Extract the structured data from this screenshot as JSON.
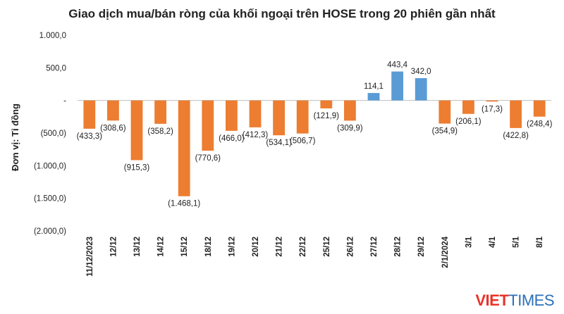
{
  "chart_data": {
    "type": "bar",
    "title": "Giao dịch mua/bán ròng của khối ngoại trên HOSE trong 20 phiên gần nhất",
    "ylabel": "Đơn vị: Tỉ đồng",
    "xlabel": "",
    "ylim": [
      -2000,
      1000
    ],
    "yticks": [
      1000,
      500,
      0,
      -500,
      -1000,
      -1500,
      -2000
    ],
    "ytick_labels": [
      "1.000,0",
      "500,0",
      "-",
      "(500,0)",
      "(1.000,0)",
      "(1.500,0)",
      "(2.000,0)"
    ],
    "categories": [
      "11/12/2023",
      "12/12",
      "13/12",
      "14/12",
      "15/12",
      "18/12",
      "19/12",
      "20/12",
      "21/12",
      "22/12",
      "25/12",
      "26/12",
      "27/12",
      "28/12",
      "29/12",
      "2/1/2024",
      "3/1",
      "4/1",
      "5/1",
      "8/1"
    ],
    "values": [
      -433.3,
      -308.6,
      -915.3,
      -358.2,
      -1468.1,
      -770.6,
      -466.0,
      -412.3,
      -534.1,
      -506.7,
      -121.9,
      -309.9,
      114.1,
      443.4,
      342.0,
      -354.9,
      -206.1,
      -17.3,
      -422.8,
      -248.4
    ],
    "value_labels": [
      "(433,3)",
      "(308,6)",
      "(915,3)",
      "(358,2)",
      "(1.468,1)",
      "(770,6)",
      "(466,0)",
      "(412,3)",
      "(534,1)",
      "(506,7)",
      "(121,9)",
      "(309,9)",
      "114,1",
      "443,4",
      "342,0",
      "(354,9)",
      "(206,1)",
      "(17,3)",
      "(422,8)",
      "(248,4)"
    ],
    "colors": {
      "negative": "#ED7D31",
      "positive": "#5B9BD5",
      "axis": "#BFBFBF"
    },
    "grid": false,
    "legend": "none"
  },
  "watermark": {
    "part1": "VIET",
    "part2": "TIMES"
  }
}
